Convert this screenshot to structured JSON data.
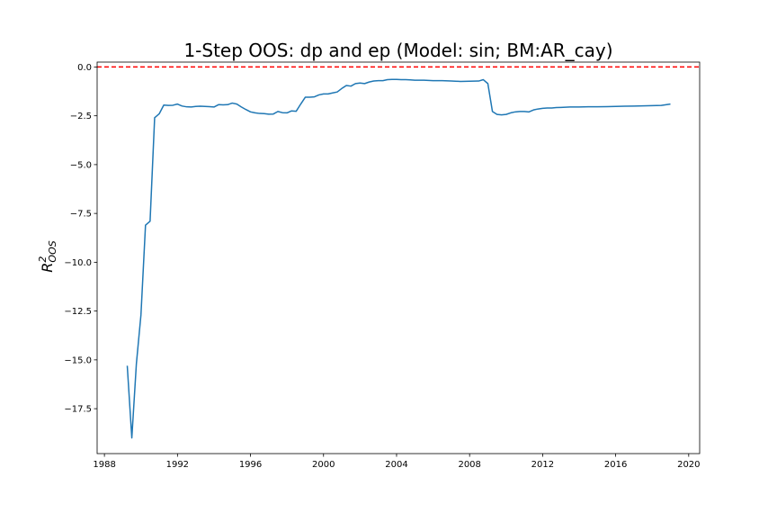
{
  "chart_data": {
    "type": "line",
    "title": "1-Step OOS: dp and ep (Model: sin; BM:AR_cay)",
    "xlabel": "",
    "ylabel": "R",
    "ylabel_superscript": "2",
    "ylabel_subscript": "OOS",
    "xlim": [
      1987.6,
      2020.6
    ],
    "ylim": [
      -19.8,
      0.25
    ],
    "x_ticks": [
      {
        "value": 1988,
        "label": "1988"
      },
      {
        "value": 1992,
        "label": "1992"
      },
      {
        "value": 1996,
        "label": "1996"
      },
      {
        "value": 2000,
        "label": "2000"
      },
      {
        "value": 2004,
        "label": "2004"
      },
      {
        "value": 2008,
        "label": "2008"
      },
      {
        "value": 2012,
        "label": "2012"
      },
      {
        "value": 2016,
        "label": "2016"
      },
      {
        "value": 2020,
        "label": "2020"
      }
    ],
    "y_ticks": [
      {
        "value": 0,
        "label": "0.0"
      },
      {
        "value": -2.5,
        "label": "−2.5"
      },
      {
        "value": -5,
        "label": "−5.0"
      },
      {
        "value": -7.5,
        "label": "−7.5"
      },
      {
        "value": -10,
        "label": "−10.0"
      },
      {
        "value": -12.5,
        "label": "−12.5"
      },
      {
        "value": -15,
        "label": "−15.0"
      },
      {
        "value": -17.5,
        "label": "−17.5"
      }
    ],
    "grid": false,
    "reference_line": {
      "y": 0,
      "color": "#ff0000",
      "style": "dashed"
    },
    "series": [
      {
        "color": "#1f77b4",
        "x": [
          1989.25,
          1989.5,
          1989.75,
          1990.0,
          1990.25,
          1990.5,
          1990.75,
          1991.0,
          1991.25,
          1991.5,
          1991.75,
          1992.0,
          1992.25,
          1992.5,
          1992.75,
          1993.0,
          1993.25,
          1993.5,
          1993.75,
          1994.0,
          1994.25,
          1994.5,
          1994.75,
          1995.0,
          1995.25,
          1995.5,
          1995.75,
          1996.0,
          1996.25,
          1996.5,
          1996.75,
          1997.0,
          1997.25,
          1997.5,
          1997.75,
          1998.0,
          1998.25,
          1998.5,
          1998.75,
          1999.0,
          1999.25,
          1999.5,
          1999.75,
          2000.0,
          2000.25,
          2000.5,
          2000.75,
          2001.0,
          2001.25,
          2001.5,
          2001.75,
          2002.0,
          2002.25,
          2002.5,
          2002.75,
          2003.0,
          2003.25,
          2003.5,
          2003.75,
          2004.0,
          2004.25,
          2004.5,
          2004.75,
          2005.0,
          2005.5,
          2006.0,
          2006.5,
          2007.0,
          2007.5,
          2008.0,
          2008.5,
          2008.75,
          2009.0,
          2009.25,
          2009.5,
          2009.75,
          2010.0,
          2010.25,
          2010.5,
          2010.75,
          2011.0,
          2011.25,
          2011.5,
          2011.75,
          2012.0,
          2012.25,
          2012.5,
          2012.75,
          2013.0,
          2013.5,
          2014.0,
          2014.5,
          2015.0,
          2015.5,
          2016.0,
          2016.5,
          2017.0,
          2017.5,
          2018.0,
          2018.5,
          2019.0
        ],
        "y": [
          -15.3,
          -19.0,
          -15.2,
          -12.7,
          -8.1,
          -7.9,
          -2.6,
          -2.4,
          -1.95,
          -1.97,
          -1.96,
          -1.9,
          -2.0,
          -2.04,
          -2.05,
          -2.02,
          -2.01,
          -2.02,
          -2.03,
          -2.05,
          -1.93,
          -1.94,
          -1.93,
          -1.85,
          -1.9,
          -2.05,
          -2.18,
          -2.3,
          -2.35,
          -2.38,
          -2.39,
          -2.42,
          -2.41,
          -2.28,
          -2.34,
          -2.35,
          -2.25,
          -2.27,
          -1.9,
          -1.55,
          -1.55,
          -1.53,
          -1.43,
          -1.38,
          -1.38,
          -1.33,
          -1.28,
          -1.1,
          -0.95,
          -0.98,
          -0.85,
          -0.82,
          -0.85,
          -0.77,
          -0.72,
          -0.7,
          -0.7,
          -0.65,
          -0.64,
          -0.64,
          -0.65,
          -0.65,
          -0.66,
          -0.68,
          -0.68,
          -0.7,
          -0.7,
          -0.72,
          -0.74,
          -0.73,
          -0.72,
          -0.65,
          -0.85,
          -2.28,
          -2.43,
          -2.45,
          -2.43,
          -2.35,
          -2.3,
          -2.28,
          -2.28,
          -2.3,
          -2.2,
          -2.15,
          -2.12,
          -2.1,
          -2.1,
          -2.08,
          -2.07,
          -2.05,
          -2.05,
          -2.04,
          -2.04,
          -2.03,
          -2.02,
          -2.01,
          -2.0,
          -1.99,
          -1.98,
          -1.97,
          -1.9
        ]
      }
    ]
  }
}
